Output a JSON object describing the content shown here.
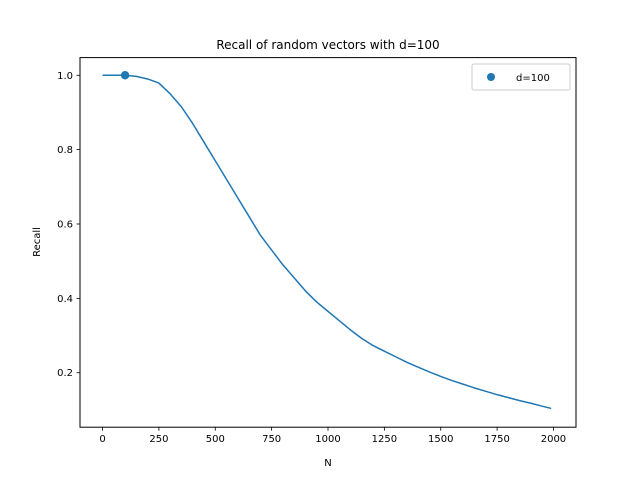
{
  "chart_data": {
    "type": "line",
    "title": "Recall of random vectors with d=100",
    "xlabel": "N",
    "ylabel": "Recall",
    "xlim": [
      -100,
      2100
    ],
    "ylim": [
      0.0535,
      1.0475
    ],
    "xticks": [
      0,
      250,
      500,
      750,
      1000,
      1250,
      1500,
      1750,
      2000
    ],
    "yticks": [
      0.2,
      0.4,
      0.6,
      0.8,
      1.0
    ],
    "xtick_labels": [
      "0",
      "250",
      "500",
      "750",
      "1000",
      "1250",
      "1500",
      "1750",
      "2000"
    ],
    "ytick_labels": [
      "0.2",
      "0.4",
      "0.6",
      "0.8",
      "1.0"
    ],
    "grid": false,
    "legend_position": "top-right",
    "series": [
      {
        "type": "line",
        "color": "#1f77b4",
        "x": [
          0,
          50,
          100,
          150,
          200,
          250,
          300,
          350,
          400,
          450,
          500,
          550,
          600,
          650,
          700,
          750,
          800,
          850,
          900,
          950,
          1000,
          1050,
          1100,
          1150,
          1200,
          1250,
          1300,
          1350,
          1400,
          1450,
          1500,
          1550,
          1600,
          1650,
          1700,
          1750,
          1800,
          1850,
          1900,
          1950,
          1990
        ],
        "y": [
          1.0,
          1.0,
          1.0,
          0.997,
          0.99,
          0.979,
          0.95,
          0.915,
          0.87,
          0.82,
          0.77,
          0.72,
          0.67,
          0.62,
          0.57,
          0.53,
          0.49,
          0.455,
          0.42,
          0.39,
          0.365,
          0.34,
          0.315,
          0.292,
          0.273,
          0.258,
          0.243,
          0.228,
          0.215,
          0.202,
          0.19,
          0.179,
          0.169,
          0.159,
          0.15,
          0.141,
          0.133,
          0.125,
          0.118,
          0.11,
          0.104
        ]
      },
      {
        "type": "scatter",
        "name": "d=100",
        "color": "#1f77b4",
        "x": [
          100
        ],
        "y": [
          1.0
        ]
      }
    ]
  }
}
